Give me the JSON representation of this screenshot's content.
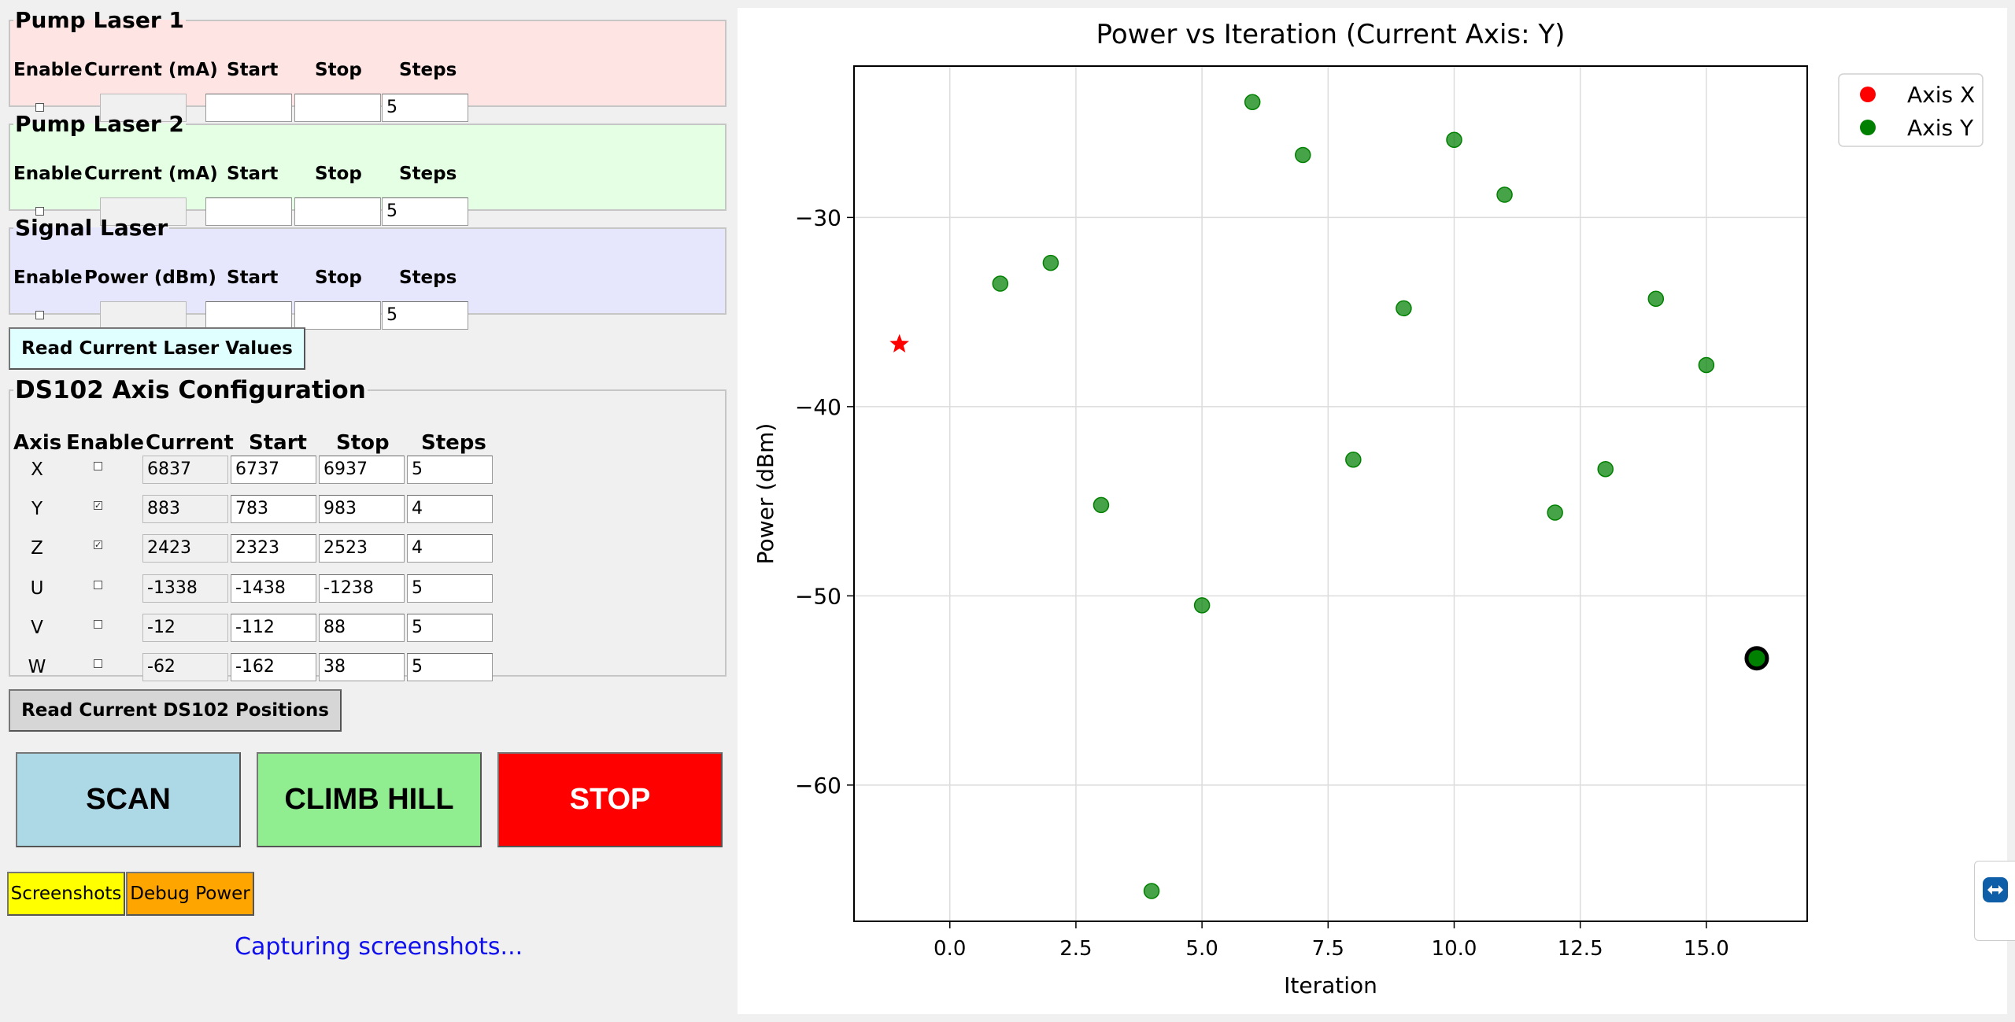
{
  "pump_laser_1": {
    "title": "Pump Laser 1",
    "headers": {
      "enable": "Enable",
      "current": "Current (mA)",
      "start": "Start",
      "stop": "Stop",
      "steps": "Steps"
    },
    "enabled": false,
    "current": "",
    "start": "",
    "stop": "",
    "steps": "5"
  },
  "pump_laser_2": {
    "title": "Pump Laser 2",
    "headers": {
      "enable": "Enable",
      "current": "Current (mA)",
      "start": "Start",
      "stop": "Stop",
      "steps": "Steps"
    },
    "enabled": false,
    "current": "",
    "start": "",
    "stop": "",
    "steps": "5"
  },
  "signal_laser": {
    "title": "Signal Laser",
    "headers": {
      "enable": "Enable",
      "power": "Power (dBm)",
      "start": "Start",
      "stop": "Stop",
      "steps": "Steps"
    },
    "enabled": false,
    "power": "",
    "start": "",
    "stop": "",
    "steps": "5"
  },
  "read_laser_button": "Read Current Laser Values",
  "ds102": {
    "title": "DS102 Axis Configuration",
    "headers": {
      "axis": "Axis",
      "enable": "Enable",
      "current": "Current",
      "start": "Start",
      "stop": "Stop",
      "steps": "Steps"
    },
    "rows": [
      {
        "axis": "X",
        "enabled": false,
        "current": "6837",
        "start": "6737",
        "stop": "6937",
        "steps": "5"
      },
      {
        "axis": "Y",
        "enabled": true,
        "current": "883",
        "start": "783",
        "stop": "983",
        "steps": "4"
      },
      {
        "axis": "Z",
        "enabled": true,
        "current": "2423",
        "start": "2323",
        "stop": "2523",
        "steps": "4"
      },
      {
        "axis": "U",
        "enabled": false,
        "current": "-1338",
        "start": "-1438",
        "stop": "-1238",
        "steps": "5"
      },
      {
        "axis": "V",
        "enabled": false,
        "current": "-12",
        "start": "-112",
        "stop": "88",
        "steps": "5"
      },
      {
        "axis": "W",
        "enabled": false,
        "current": "-62",
        "start": "-162",
        "stop": "38",
        "steps": "5"
      }
    ]
  },
  "read_ds102_button": "Read Current DS102 Positions",
  "actions": {
    "scan": "SCAN",
    "climb": "CLIMB HILL",
    "stop": "STOP"
  },
  "utility": {
    "screenshots": "Screenshots",
    "debug_power": "Debug Power"
  },
  "status_text": "Capturing screenshots...",
  "colors": {
    "scan": "#add8e6",
    "climb": "#90ee90",
    "stop": "#ff0000",
    "screenshots": "#ffff00",
    "debug": "#ffa500",
    "status": "#1010ee"
  },
  "chart_data": {
    "type": "scatter",
    "title": "Power vs Iteration (Current Axis: Y)",
    "xlabel": "Iteration",
    "ylabel": "Power (dBm)",
    "xlim": [
      -1.9,
      17.0
    ],
    "ylim": [
      -67.2,
      -22.0
    ],
    "xticks": [
      0.0,
      2.5,
      5.0,
      7.5,
      10.0,
      12.5,
      15.0
    ],
    "xtick_labels": [
      "0.0",
      "2.5",
      "5.0",
      "7.5",
      "10.0",
      "12.5",
      "15.0"
    ],
    "yticks": [
      -30,
      -40,
      -50,
      -60
    ],
    "ytick_labels": [
      "−30",
      "−40",
      "−50",
      "−60"
    ],
    "grid": true,
    "legend_position": "top-right",
    "series": [
      {
        "name": "Axis X",
        "color": "#ff0000",
        "points": [
          {
            "x": -1,
            "y": -36.7
          }
        ],
        "marker": "star"
      },
      {
        "name": "Axis Y",
        "color": "#008000",
        "points": [
          {
            "x": 1,
            "y": -33.5
          },
          {
            "x": 2,
            "y": -32.4
          },
          {
            "x": 3,
            "y": -45.2
          },
          {
            "x": 4,
            "y": -65.6
          },
          {
            "x": 5,
            "y": -50.5
          },
          {
            "x": 6,
            "y": -23.9
          },
          {
            "x": 7,
            "y": -26.7
          },
          {
            "x": 8,
            "y": -42.8
          },
          {
            "x": 9,
            "y": -34.8
          },
          {
            "x": 10,
            "y": -25.9
          },
          {
            "x": 11,
            "y": -28.8
          },
          {
            "x": 12,
            "y": -45.6
          },
          {
            "x": 13,
            "y": -43.3
          },
          {
            "x": 14,
            "y": -34.3
          },
          {
            "x": 15,
            "y": -37.8
          }
        ],
        "marker": "circle"
      }
    ],
    "current_point": {
      "x": 16,
      "y": -53.3
    }
  }
}
